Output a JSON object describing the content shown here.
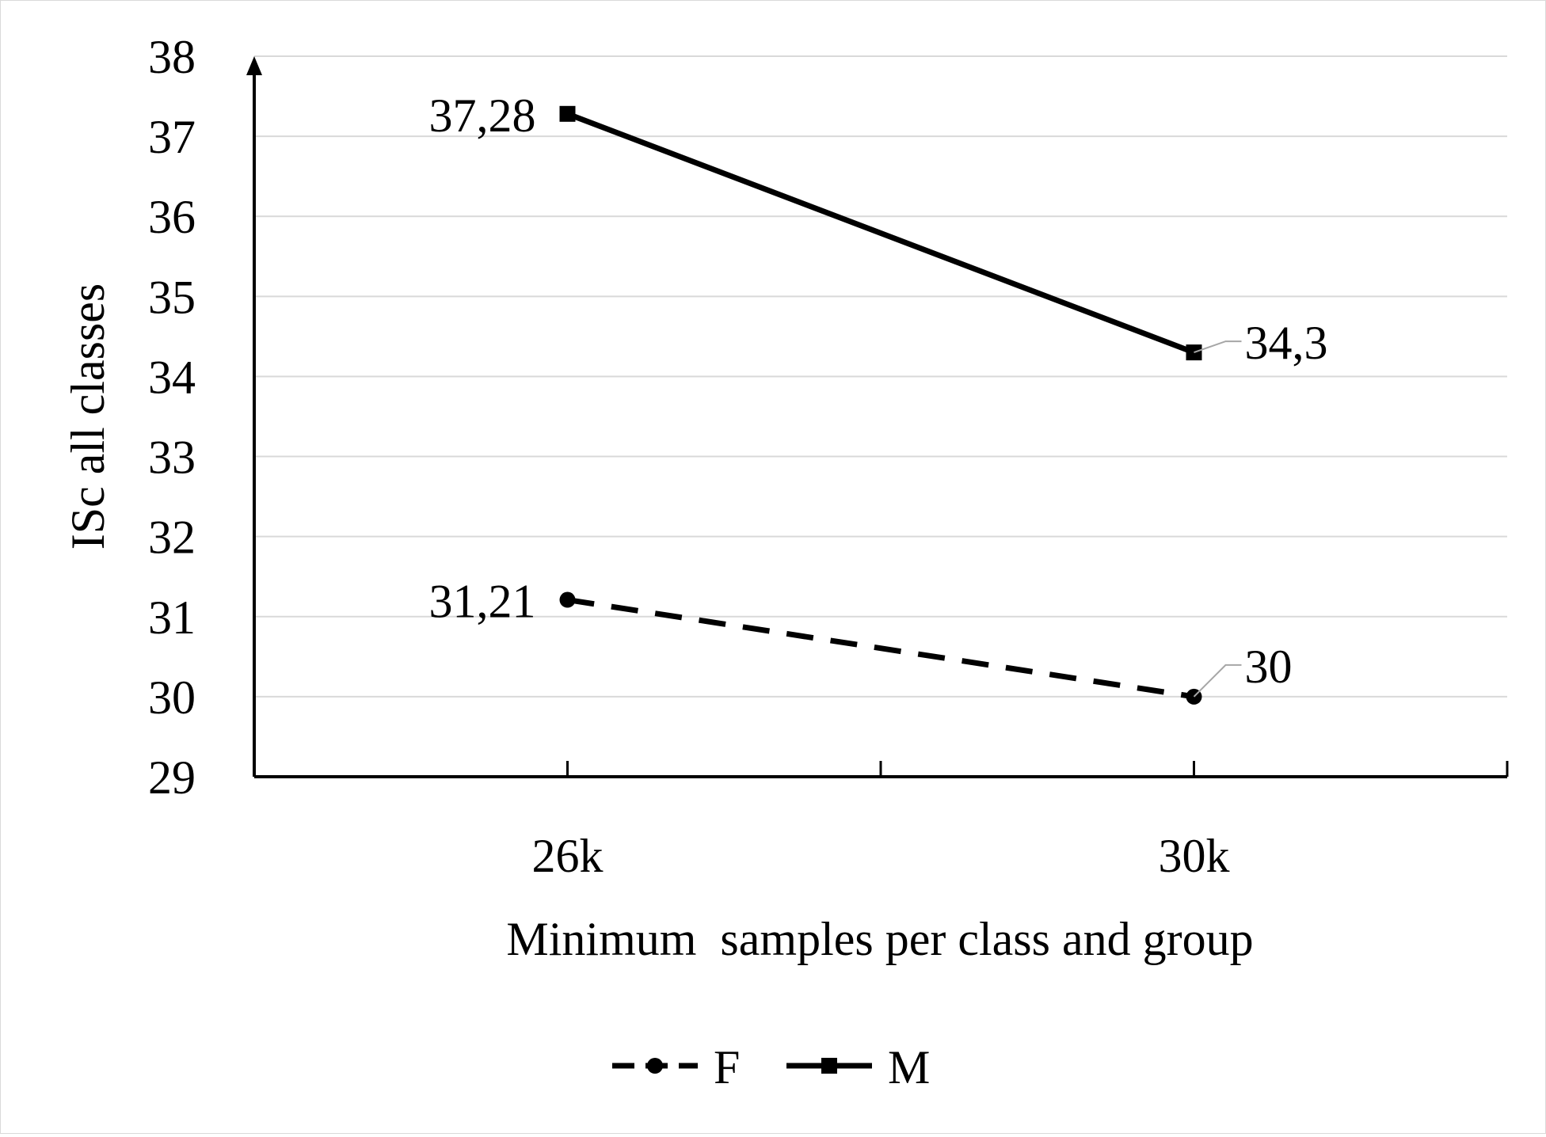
{
  "chart_data": {
    "type": "line",
    "title": "",
    "xlabel": "Minimum  samples per class and group",
    "ylabel": "ISc all classes",
    "categories": [
      "26k",
      "30k"
    ],
    "ylim": [
      29,
      38
    ],
    "yticks": [
      "29",
      "30",
      "31",
      "32",
      "33",
      "34",
      "35",
      "36",
      "37",
      "38"
    ],
    "grid": true,
    "legend_position": "bottom",
    "series": [
      {
        "name": "F",
        "values": [
          31.21,
          30
        ],
        "labels": [
          "31,21",
          "30"
        ],
        "line_style": "dashed",
        "marker": "circle",
        "color": "#000000"
      },
      {
        "name": "M",
        "values": [
          37.28,
          34.3
        ],
        "labels": [
          "37,28",
          "34,3"
        ],
        "line_style": "solid",
        "marker": "square",
        "color": "#000000"
      }
    ]
  }
}
